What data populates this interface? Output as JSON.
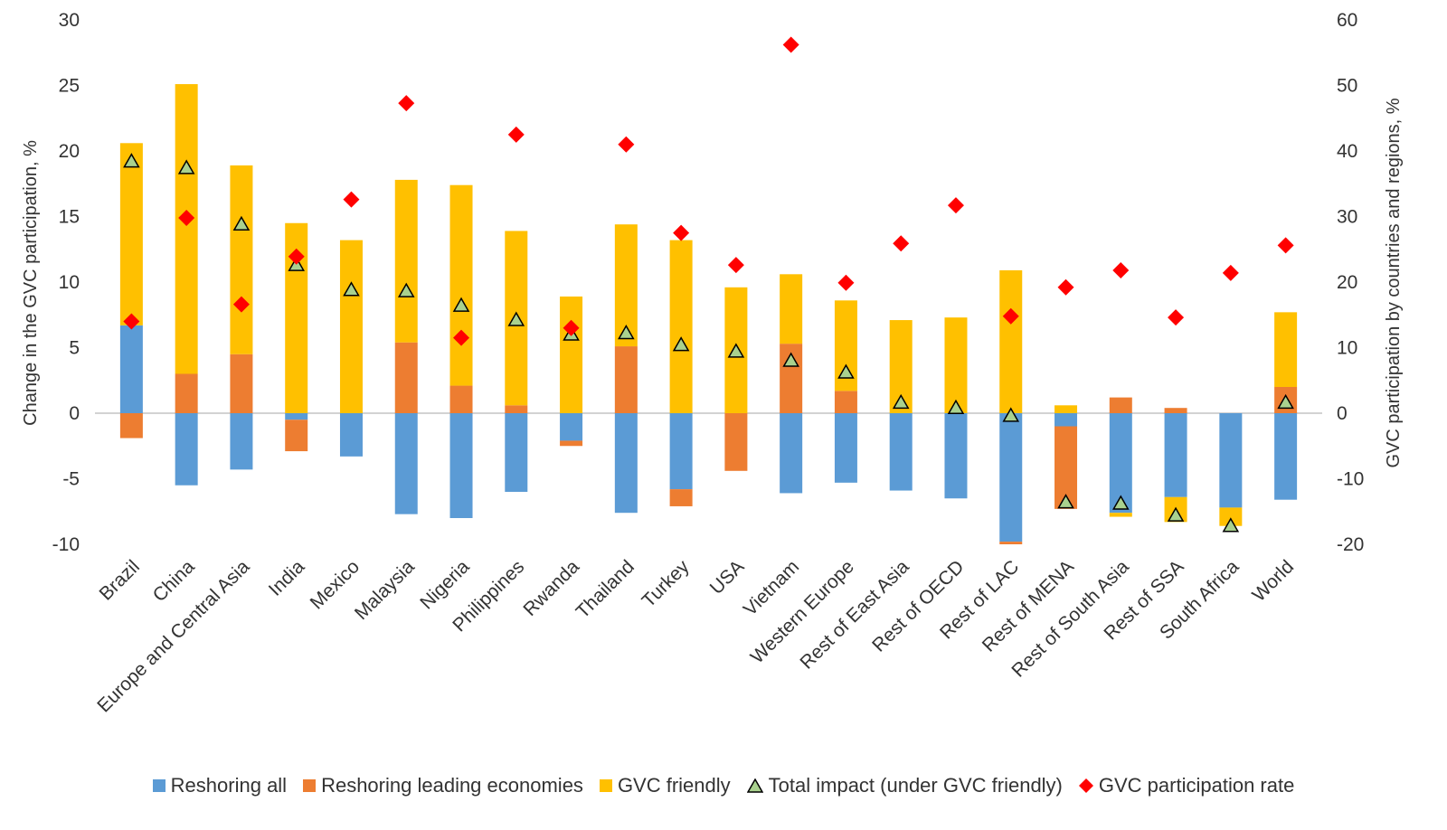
{
  "chart_data": {
    "type": "bar",
    "stacked": true,
    "title": "",
    "ylabel": "Change in the GVC participation, %",
    "y2label": "GVC participation by countries and regions, %",
    "ylim": [
      -10,
      30
    ],
    "y2lim": [
      -20,
      60
    ],
    "yticks": [
      "30",
      "25",
      "20",
      "15",
      "10",
      "5",
      "0",
      "-5",
      "-10"
    ],
    "y2ticks": [
      "60",
      "50",
      "40",
      "30",
      "20",
      "10",
      "0",
      "-10",
      "-20"
    ],
    "legend_position": "bottom",
    "categories": [
      "Brazil",
      "China",
      "Europe and Central Asia",
      "India",
      "Mexico",
      "Malaysia",
      "Nigeria",
      "Philippines",
      "Rwanda",
      "Thailand",
      "Turkey",
      "USA",
      "Vietnam",
      "Western Europe",
      "Rest of East Asia",
      "Rest of OECD",
      "Rest of LAC",
      "Rest of MENA",
      "Rest of South Asia",
      "Rest of SSA",
      "South Africa",
      "World"
    ],
    "series": [
      {
        "name": "Reshoring all",
        "type": "bar",
        "axis": "left",
        "color": "#5b9bd5",
        "values": [
          6.7,
          -5.5,
          -4.3,
          -0.5,
          -3.3,
          -7.7,
          -8.0,
          -6.0,
          -2.1,
          -7.6,
          -5.8,
          0,
          -6.1,
          -5.3,
          -5.9,
          -6.5,
          -9.8,
          -1.0,
          -7.6,
          -6.4,
          -7.2,
          -6.6
        ]
      },
      {
        "name": "Reshoring leading economies",
        "type": "bar",
        "axis": "left",
        "color": "#ed7d31",
        "values": [
          -1.9,
          3.0,
          4.5,
          -2.4,
          0,
          5.4,
          2.1,
          0.6,
          -0.4,
          5.1,
          -1.3,
          -4.4,
          5.3,
          1.7,
          0,
          0,
          -0.2,
          -6.3,
          1.2,
          0.4,
          0,
          2.0
        ]
      },
      {
        "name": "GVC friendly",
        "type": "bar",
        "axis": "left",
        "color": "#ffc000",
        "values": [
          13.9,
          22.1,
          14.4,
          14.5,
          13.2,
          12.4,
          15.3,
          13.3,
          8.9,
          9.3,
          13.2,
          9.6,
          5.3,
          6.9,
          7.1,
          7.3,
          10.9,
          0.6,
          -0.3,
          -1.9,
          -1.4,
          5.7
        ]
      },
      {
        "name": "Total impact (under GVC friendly)",
        "type": "scatter",
        "axis": "left",
        "color": "#a9d18e",
        "marker": "triangle",
        "values": [
          19.2,
          18.7,
          14.4,
          11.3,
          9.4,
          9.3,
          8.2,
          7.1,
          6.0,
          6.1,
          5.2,
          4.7,
          4.0,
          3.1,
          0.8,
          0.4,
          -0.2,
          -6.8,
          -6.9,
          -7.8,
          -8.6,
          0.8
        ]
      },
      {
        "name": "GVC participation rate",
        "type": "scatter",
        "axis": "right",
        "color": "#ff0000",
        "marker": "diamond",
        "values": [
          14.0,
          29.8,
          16.6,
          23.9,
          32.6,
          47.3,
          11.5,
          42.5,
          13.0,
          41.0,
          27.5,
          22.6,
          56.2,
          19.9,
          25.9,
          31.7,
          14.8,
          19.2,
          21.8,
          14.6,
          21.4,
          25.6
        ]
      }
    ]
  }
}
